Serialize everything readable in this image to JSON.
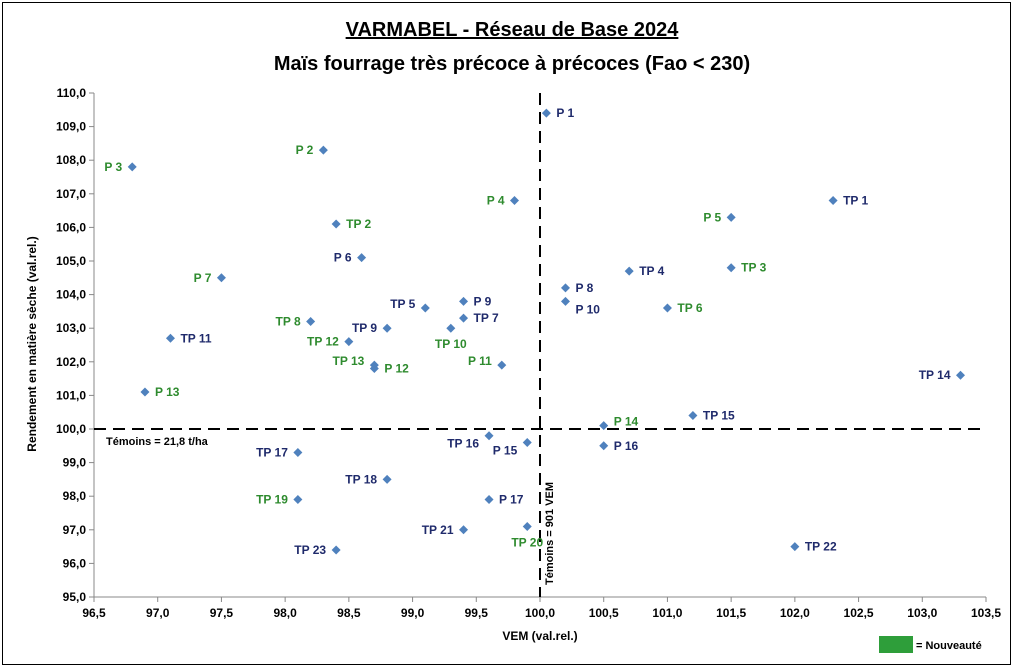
{
  "chart_data": {
    "type": "scatter",
    "title": "VARMABEL - Réseau de Base 2024",
    "subtitle": "Maïs fourrage très précoce à précoces (Fao < 230)",
    "xlabel": "VEM (val.rel.)",
    "ylabel": "Rendement en matière sèche (val.rel.)",
    "xlim": [
      96.5,
      103.5
    ],
    "ylim": [
      95.0,
      110.0
    ],
    "x_ticks": [
      "96,5",
      "97,0",
      "97,5",
      "98,0",
      "98,5",
      "99,0",
      "99,5",
      "100,0",
      "100,5",
      "101,0",
      "101,5",
      "102,0",
      "102,5",
      "103,0",
      "103,5"
    ],
    "y_ticks": [
      "95,0",
      "96,0",
      "97,0",
      "98,0",
      "99,0",
      "100,0",
      "101,0",
      "102,0",
      "103,0",
      "104,0",
      "105,0",
      "106,0",
      "107,0",
      "108,0",
      "109,0",
      "110,0"
    ],
    "grid": false,
    "marker_color": "#4f81bd",
    "label_colors": {
      "nouveaute": "#2e8b2e",
      "standard": "#1f2a6b"
    },
    "reference_lines": {
      "horizontal": {
        "y": 100.0,
        "label": "Témoins = 21,8 t/ha"
      },
      "vertical": {
        "x": 100.0,
        "label": "Témoins = 901 VEM"
      }
    },
    "legend": {
      "placement": "bottom-right",
      "label": "= Nouveauté",
      "color": "#2e9e3a"
    },
    "points": [
      {
        "label": "P 1",
        "x": 100.05,
        "y": 109.4,
        "nouveaute": false,
        "pos": "right"
      },
      {
        "label": "P 2",
        "x": 98.3,
        "y": 108.3,
        "nouveaute": true,
        "pos": "left"
      },
      {
        "label": "P 3",
        "x": 96.8,
        "y": 107.8,
        "nouveaute": true,
        "pos": "left"
      },
      {
        "label": "P 4",
        "x": 99.8,
        "y": 106.8,
        "nouveaute": true,
        "pos": "left"
      },
      {
        "label": "TP 1",
        "x": 102.3,
        "y": 106.8,
        "nouveaute": false,
        "pos": "right"
      },
      {
        "label": "P 5",
        "x": 101.5,
        "y": 106.3,
        "nouveaute": true,
        "pos": "left"
      },
      {
        "label": "TP 2",
        "x": 98.4,
        "y": 106.1,
        "nouveaute": true,
        "pos": "right"
      },
      {
        "label": "P 6",
        "x": 98.6,
        "y": 105.1,
        "nouveaute": false,
        "pos": "left"
      },
      {
        "label": "TP 3",
        "x": 101.5,
        "y": 104.8,
        "nouveaute": true,
        "pos": "right"
      },
      {
        "label": "TP 4",
        "x": 100.7,
        "y": 104.7,
        "nouveaute": false,
        "pos": "right"
      },
      {
        "label": "P 7",
        "x": 97.5,
        "y": 104.5,
        "nouveaute": true,
        "pos": "left"
      },
      {
        "label": "P 8",
        "x": 100.2,
        "y": 104.2,
        "nouveaute": false,
        "pos": "right"
      },
      {
        "label": "P 9",
        "x": 99.4,
        "y": 103.8,
        "nouveaute": false,
        "pos": "right"
      },
      {
        "label": "P 10",
        "x": 100.2,
        "y": 103.8,
        "nouveaute": false,
        "pos": "right-down"
      },
      {
        "label": "TP 5",
        "x": 99.1,
        "y": 103.6,
        "nouveaute": false,
        "pos": "left-up"
      },
      {
        "label": "TP 6",
        "x": 101.0,
        "y": 103.6,
        "nouveaute": true,
        "pos": "right"
      },
      {
        "label": "TP 7",
        "x": 99.4,
        "y": 103.3,
        "nouveaute": false,
        "pos": "right"
      },
      {
        "label": "TP 8",
        "x": 98.2,
        "y": 103.2,
        "nouveaute": true,
        "pos": "left"
      },
      {
        "label": "TP 9",
        "x": 98.8,
        "y": 103.0,
        "nouveaute": false,
        "pos": "left"
      },
      {
        "label": "TP 10",
        "x": 99.3,
        "y": 103.0,
        "nouveaute": true,
        "pos": "below"
      },
      {
        "label": "TP 11",
        "x": 97.1,
        "y": 102.7,
        "nouveaute": false,
        "pos": "right"
      },
      {
        "label": "TP 12",
        "x": 98.5,
        "y": 102.6,
        "nouveaute": true,
        "pos": "left"
      },
      {
        "label": "P 11",
        "x": 99.7,
        "y": 101.9,
        "nouveaute": true,
        "pos": "left-up"
      },
      {
        "label": "TP 13",
        "x": 98.7,
        "y": 101.9,
        "nouveaute": true,
        "pos": "left-up"
      },
      {
        "label": "P 12",
        "x": 98.7,
        "y": 101.8,
        "nouveaute": true,
        "pos": "right"
      },
      {
        "label": "TP 14",
        "x": 103.3,
        "y": 101.6,
        "nouveaute": false,
        "pos": "left"
      },
      {
        "label": "P 13",
        "x": 96.9,
        "y": 101.1,
        "nouveaute": true,
        "pos": "right"
      },
      {
        "label": "TP 15",
        "x": 101.2,
        "y": 100.4,
        "nouveaute": false,
        "pos": "right"
      },
      {
        "label": "P 14",
        "x": 100.5,
        "y": 100.1,
        "nouveaute": true,
        "pos": "right-up"
      },
      {
        "label": "TP 16",
        "x": 99.6,
        "y": 99.8,
        "nouveaute": false,
        "pos": "left-down"
      },
      {
        "label": "P 15",
        "x": 99.9,
        "y": 99.6,
        "nouveaute": false,
        "pos": "left-down"
      },
      {
        "label": "P 16",
        "x": 100.5,
        "y": 99.5,
        "nouveaute": false,
        "pos": "right"
      },
      {
        "label": "TP 17",
        "x": 98.1,
        "y": 99.3,
        "nouveaute": false,
        "pos": "left"
      },
      {
        "label": "TP 18",
        "x": 98.8,
        "y": 98.5,
        "nouveaute": false,
        "pos": "left"
      },
      {
        "label": "TP 19",
        "x": 98.1,
        "y": 97.9,
        "nouveaute": true,
        "pos": "left"
      },
      {
        "label": "P 17",
        "x": 99.6,
        "y": 97.9,
        "nouveaute": false,
        "pos": "right"
      },
      {
        "label": "TP 21",
        "x": 99.4,
        "y": 97.0,
        "nouveaute": false,
        "pos": "left"
      },
      {
        "label": "TP 20",
        "x": 99.9,
        "y": 97.1,
        "nouveaute": true,
        "pos": "below"
      },
      {
        "label": "TP 22",
        "x": 102.0,
        "y": 96.5,
        "nouveaute": false,
        "pos": "right"
      },
      {
        "label": "TP 23",
        "x": 98.4,
        "y": 96.4,
        "nouveaute": false,
        "pos": "left"
      }
    ]
  }
}
